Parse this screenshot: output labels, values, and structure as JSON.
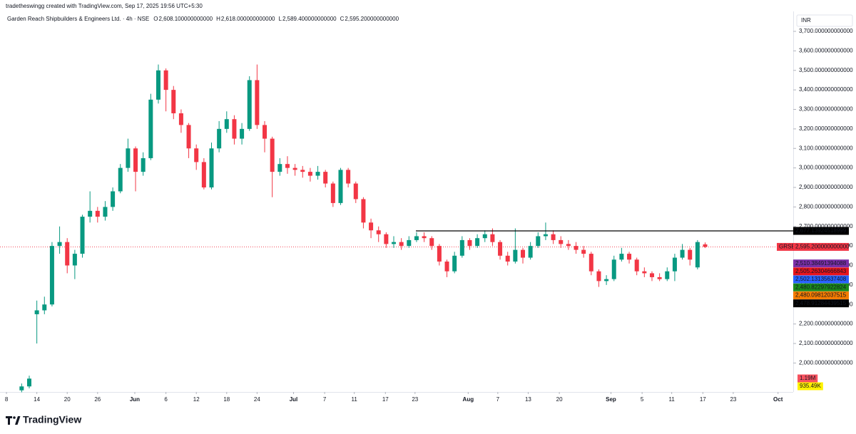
{
  "chart_data": {
    "type": "candlestick",
    "attribution": "tradetheswingg created with TradingView.com, Sep 17, 2025 19:56 UTC+5:30",
    "title": "Garden Reach Shipbuilders & Engineers Ltd. · 4h · NSE",
    "ohlc_legend": [
      {
        "key": "O",
        "value": 2608.1,
        "label": "2,608.100000000000"
      },
      {
        "key": "H",
        "value": 2618,
        "label": "2,618.000000000000"
      },
      {
        "key": "L",
        "value": 2589.4,
        "label": "2,589.400000000000"
      },
      {
        "key": "C",
        "value": 2595.2,
        "label": "2,595.200000000000"
      }
    ],
    "currency": "INR",
    "up_color": "#089981",
    "down_color": "#f23645",
    "open": [
      1860,
      1880,
      2250,
      2270,
      2300,
      2600,
      2620,
      2500,
      2560,
      2750,
      2780,
      2750,
      2800,
      2880,
      3000,
      3100,
      2980,
      3050,
      3350,
      3500,
      3400,
      3280,
      3220,
      3100,
      3030,
      2900,
      3100,
      3200,
      3250,
      3150,
      3200,
      3450,
      3220,
      3150,
      2980,
      3020,
      3000,
      2990,
      2980,
      2960,
      2980,
      2920,
      2820,
      2990,
      2920,
      2840,
      2720,
      2680,
      2660,
      2610,
      2620,
      2600,
      2630,
      2650,
      2640,
      2600,
      2520,
      2470,
      2550,
      2630,
      2600,
      2640,
      2660,
      2620,
      2550,
      2520,
      2580,
      2540,
      2600,
      2650,
      2660,
      2630,
      2610,
      2600,
      2580,
      2560,
      2470,
      2420,
      2430,
      2530,
      2560,
      2530,
      2470,
      2460,
      2440,
      2430,
      2470,
      2540,
      2580,
      2490,
      2608.1
    ],
    "high": [
      1895,
      1935,
      2320,
      2340,
      2620,
      2700,
      2640,
      2580,
      2760,
      2880,
      2800,
      2830,
      2900,
      3020,
      3150,
      3110,
      3080,
      3380,
      3530,
      3510,
      3420,
      3300,
      3230,
      3120,
      3050,
      3130,
      3240,
      3290,
      3270,
      3230,
      3470,
      3530,
      3240,
      3160,
      3050,
      3060,
      3020,
      3010,
      3000,
      3010,
      2990,
      2930,
      3000,
      3000,
      2930,
      2850,
      2740,
      2700,
      2670,
      2650,
      2640,
      2650,
      2670,
      2670,
      2650,
      2610,
      2530,
      2570,
      2650,
      2640,
      2660,
      2680,
      2690,
      2630,
      2570,
      2690,
      2590,
      2620,
      2670,
      2720,
      2680,
      2650,
      2630,
      2620,
      2600,
      2570,
      2480,
      2450,
      2550,
      2590,
      2570,
      2540,
      2490,
      2470,
      2460,
      2490,
      2560,
      2610,
      2590,
      2630,
      2618
    ],
    "low": [
      1850,
      1870,
      2100,
      2250,
      2290,
      2560,
      2460,
      2430,
      2540,
      2720,
      2720,
      2730,
      2780,
      2870,
      2980,
      2880,
      2960,
      3040,
      3330,
      3290,
      3250,
      3180,
      3050,
      2990,
      2890,
      2890,
      3080,
      3180,
      3120,
      3120,
      3190,
      3200,
      3080,
      2850,
      2960,
      2970,
      2960,
      2950,
      2930,
      2940,
      2900,
      2800,
      2810,
      2900,
      2820,
      2690,
      2640,
      2620,
      2590,
      2590,
      2580,
      2590,
      2620,
      2620,
      2580,
      2500,
      2440,
      2460,
      2540,
      2580,
      2590,
      2620,
      2600,
      2530,
      2500,
      2510,
      2510,
      2530,
      2590,
      2630,
      2610,
      2590,
      2580,
      2560,
      2540,
      2450,
      2390,
      2400,
      2420,
      2520,
      2510,
      2450,
      2440,
      2420,
      2420,
      2420,
      2420,
      2530,
      2500,
      2480,
      2589.4
    ],
    "close": [
      1880,
      1920,
      2270,
      2300,
      2600,
      2620,
      2500,
      2560,
      2750,
      2780,
      2750,
      2800,
      2880,
      3000,
      3100,
      2980,
      3050,
      3350,
      3500,
      3400,
      3280,
      3220,
      3100,
      3030,
      2900,
      3100,
      3200,
      3250,
      3150,
      3200,
      3450,
      3220,
      3150,
      2980,
      3020,
      3000,
      2990,
      2980,
      2960,
      2980,
      2920,
      2820,
      2990,
      2920,
      2840,
      2720,
      2680,
      2660,
      2610,
      2620,
      2600,
      2630,
      2650,
      2640,
      2600,
      2520,
      2470,
      2550,
      2630,
      2600,
      2640,
      2660,
      2620,
      2550,
      2520,
      2580,
      2540,
      2600,
      2650,
      2660,
      2630,
      2610,
      2600,
      2580,
      2560,
      2470,
      2420,
      2430,
      2530,
      2560,
      2530,
      2470,
      2460,
      2440,
      2430,
      2470,
      2540,
      2580,
      2530,
      2620,
      2595.2
    ],
    "xlim": [
      -2.85,
      101.6
    ],
    "xticks": [
      {
        "value": -2,
        "label": "8"
      },
      {
        "value": 2,
        "label": "14"
      },
      {
        "value": 6,
        "label": "20"
      },
      {
        "value": 10,
        "label": "26"
      },
      {
        "value": 14.9,
        "label": "Jun"
      },
      {
        "value": 19,
        "label": "6"
      },
      {
        "value": 23,
        "label": "12"
      },
      {
        "value": 27,
        "label": "18"
      },
      {
        "value": 31,
        "label": "24"
      },
      {
        "value": 35.8,
        "label": "Jul"
      },
      {
        "value": 39.9,
        "label": "7"
      },
      {
        "value": 43.8,
        "label": "11"
      },
      {
        "value": 47.9,
        "label": "17"
      },
      {
        "value": 51.8,
        "label": "23"
      },
      {
        "value": 58.8,
        "label": "Aug"
      },
      {
        "value": 62.7,
        "label": "7"
      },
      {
        "value": 66.7,
        "label": "13"
      },
      {
        "value": 70.8,
        "label": "20"
      },
      {
        "value": 77.6,
        "label": "Sep"
      },
      {
        "value": 81.7,
        "label": "5"
      },
      {
        "value": 85.6,
        "label": "11"
      },
      {
        "value": 89.7,
        "label": "17"
      },
      {
        "value": 93.7,
        "label": "23"
      },
      {
        "value": 99.6,
        "label": "Oct"
      }
    ],
    "ylim": [
      1851.6,
      3795
    ],
    "yticks": [
      {
        "value": 2000,
        "label": "2,000.000000000000"
      },
      {
        "value": 2100,
        "label": "2,100.000000000000"
      },
      {
        "value": 2200,
        "label": "2,200.000000000000"
      },
      {
        "value": 2300,
        "label": "2,300.000000000000"
      },
      {
        "value": 2400,
        "label": "2,400.000000000000"
      },
      {
        "value": 2500,
        "label": "2,500.000000000000"
      },
      {
        "value": 2600,
        "label": "2,600.000000000000"
      },
      {
        "value": 2700,
        "label": "2,700.000000000000"
      },
      {
        "value": 2800,
        "label": "2,800.000000000000"
      },
      {
        "value": 2900,
        "label": "2,900.000000000000"
      },
      {
        "value": 3000,
        "label": "3,000.000000000000"
      },
      {
        "value": 3100,
        "label": "3,100.000000000000"
      },
      {
        "value": 3200,
        "label": "3,200.000000000000"
      },
      {
        "value": 3300,
        "label": "3,300.000000000000"
      },
      {
        "value": 3400,
        "label": "3,400.000000000000"
      },
      {
        "value": 3500,
        "label": "3,500.000000000000"
      },
      {
        "value": 3600,
        "label": "3,600.000000000000"
      },
      {
        "value": 3700,
        "label": "3,700.000000000000"
      }
    ],
    "grid": false,
    "hline": {
      "value": 2677.13924518999,
      "label": "2,677.13924518999",
      "color": "#000000"
    },
    "last_price": {
      "symbol": "GRSE",
      "value": 2595.2,
      "label": "2,595.200000000000",
      "color": "#f23645"
    },
    "price_labels": [
      {
        "value": 2510.38491394088,
        "label": "2,510.38491394088",
        "color": "#7b2fa8"
      },
      {
        "value": 2505.26304666843,
        "label": "2,505.26304666843",
        "color": "#e8141c"
      },
      {
        "value": 2502.13135637408,
        "label": "2,502.13135637408",
        "color": "#2962ff"
      },
      {
        "value": 2480.82297922824,
        "label": "2,480.82297922824",
        "color": "#1b8a1b"
      },
      {
        "value": 2480.09812037515,
        "label": "2,480.09812037515",
        "color": "#f57c00"
      },
      {
        "value": 2478.91284439515,
        "label": "2,478.91284439515",
        "color": "#000000"
      }
    ],
    "volume_labels": [
      {
        "value": 1190000,
        "label": "1.19M",
        "color": "#f7525f",
        "text_color": "#ffffff"
      },
      {
        "value": 935490,
        "label": "935.49K",
        "color": "#fff200",
        "text_color": "#000000"
      }
    ],
    "brand": "TradingView"
  }
}
